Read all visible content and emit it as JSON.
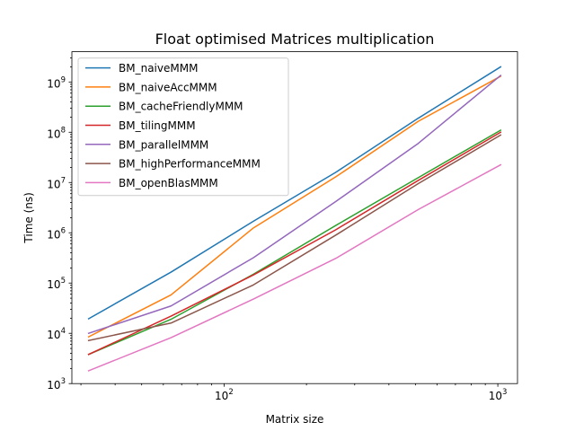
{
  "chart_data": {
    "type": "line",
    "title": "Float optimised  Matrices multiplication",
    "xlabel": "Matrix size",
    "ylabel": "Time (ns)",
    "xscale": "log",
    "yscale": "log",
    "xlim": [
      27.8,
      1180
    ],
    "ylim": [
      1000,
      4000000000
    ],
    "x_major_ticks": [
      {
        "base": "10",
        "exp": "2",
        "value": 100
      },
      {
        "base": "10",
        "exp": "3",
        "value": 1000
      }
    ],
    "y_major_ticks": [
      {
        "base": "10",
        "exp": "3",
        "value": 1000
      },
      {
        "base": "10",
        "exp": "4",
        "value": 10000
      },
      {
        "base": "10",
        "exp": "5",
        "value": 100000
      },
      {
        "base": "10",
        "exp": "6",
        "value": 1000000
      },
      {
        "base": "10",
        "exp": "7",
        "value": 10000000
      },
      {
        "base": "10",
        "exp": "8",
        "value": 100000000
      },
      {
        "base": "10",
        "exp": "9",
        "value": 1000000000
      }
    ],
    "grid": false,
    "legend_position": "top-left",
    "x": [
      32,
      64,
      128,
      256,
      512,
      1024
    ],
    "series": [
      {
        "name": "BM_naiveMMM",
        "color": "#1f77b4",
        "values": [
          19500,
          165000,
          1700000,
          16000000,
          190000000,
          2000000000
        ]
      },
      {
        "name": "BM_naiveAccMMM",
        "color": "#ff7f0e",
        "values": [
          8500,
          58000,
          1250000,
          13000000,
          165000000,
          1300000000
        ]
      },
      {
        "name": "BM_cacheFriendlyMMM",
        "color": "#2ca02c",
        "values": [
          3800,
          19000,
          150000,
          1400000,
          12500000,
          110000000
        ]
      },
      {
        "name": "BM_tilingMMM",
        "color": "#d62728",
        "values": [
          3800,
          22000,
          145000,
          1150000,
          11000000,
          100000000
        ]
      },
      {
        "name": "BM_parallelMMM",
        "color": "#9467bd",
        "values": [
          10000,
          35000,
          320000,
          4200000,
          60000000,
          1350000000
        ]
      },
      {
        "name": "BM_highPerformanceMMM",
        "color": "#8c564b",
        "values": [
          7200,
          16000,
          92000,
          900000,
          9500000,
          88000000
        ]
      },
      {
        "name": "BM_openBlasMMM",
        "color": "#e377c2",
        "values": [
          1800,
          8200,
          48000,
          310000,
          2900000,
          22500000
        ]
      }
    ]
  }
}
